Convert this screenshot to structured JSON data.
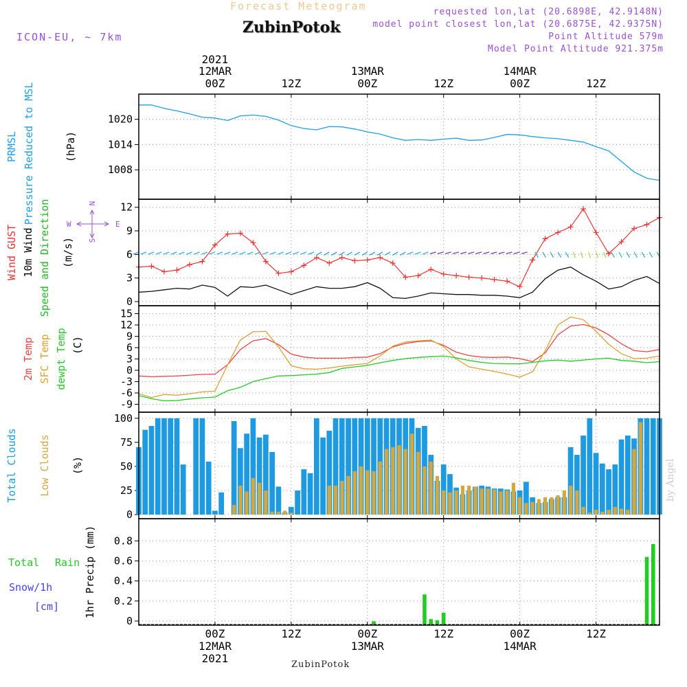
{
  "header": {
    "subtitle": "Forecast Meteogram",
    "title": "ZubinPotok",
    "model": "ICON-EU, ~ 7km",
    "requested": "requested lon,lat (20.6898E, 42.9148N)",
    "closest": "model point closest lon,lat (20.6875E, 42.9375N)",
    "point_altitude": "Point Altitude 579m",
    "model_altitude": "Model Point Altitude 921.375m"
  },
  "footer": {
    "location": "ZubinPotok",
    "watermark": "by Angel"
  },
  "colors": {
    "pressure": "#1ea0e8",
    "gust": "#ee3333",
    "wind": "#111111",
    "wind_label": "#22bb22",
    "temp": "#ee4444",
    "sfc": "#e0a030",
    "dew": "#22cc22",
    "total_clouds": "#1e9be0",
    "low_clouds": "#d4a840",
    "rain": "#22cc22",
    "snow": "#4444ee",
    "compass": "#9b4fd6"
  },
  "chart_data": [
    {
      "type": "line",
      "name": "pressure",
      "ylabel_lines": [
        "PRMSL",
        "Pressure Reduced to MSL"
      ],
      "unit": "(hPa)",
      "yticks": [
        1008,
        1014,
        1020
      ],
      "ylim": [
        1002,
        1025
      ],
      "xlim": [
        -12,
        70
      ],
      "x": [
        -12,
        -10,
        -8,
        -6,
        -4,
        -2,
        0,
        2,
        4,
        6,
        8,
        10,
        12,
        14,
        16,
        18,
        20,
        22,
        24,
        26,
        28,
        30,
        32,
        34,
        36,
        38,
        40,
        42,
        44,
        46,
        48,
        50,
        52,
        54,
        56,
        58,
        60,
        62,
        64,
        66,
        68,
        70
      ],
      "values": [
        1023.4,
        1023.4,
        1022.6,
        1022.0,
        1021.3,
        1020.5,
        1020.3,
        1019.7,
        1020.8,
        1021.0,
        1020.7,
        1019.8,
        1018.5,
        1017.8,
        1017.5,
        1018.3,
        1018.2,
        1017.7,
        1017.0,
        1016.5,
        1015.6,
        1015.0,
        1015.2,
        1015.0,
        1015.3,
        1015.5,
        1015.0,
        1015.1,
        1015.7,
        1016.4,
        1016.3,
        1015.9,
        1015.6,
        1015.4,
        1015.0,
        1014.6,
        1013.5,
        1012.5,
        1010.0,
        1007.5,
        1006.0,
        1005.5
      ]
    },
    {
      "type": "line",
      "name": "wind",
      "ylabel_lines": [
        "Wind GUST",
        "10m Wind",
        "Speed and Direction"
      ],
      "unit": "(m/s)",
      "compass": {
        "n": "N",
        "s": "S",
        "w": "W",
        "e": "E"
      },
      "yticks": [
        0,
        3,
        6,
        9,
        12
      ],
      "ylim": [
        0,
        12.5
      ],
      "xlim": [
        -12,
        70
      ],
      "x": [
        -12,
        -10,
        -8,
        -6,
        -4,
        -2,
        0,
        2,
        4,
        6,
        8,
        10,
        12,
        14,
        16,
        18,
        20,
        22,
        24,
        26,
        28,
        30,
        32,
        34,
        36,
        38,
        40,
        42,
        44,
        46,
        48,
        50,
        52,
        54,
        56,
        58,
        60,
        62,
        64,
        66,
        68,
        70
      ],
      "series": [
        {
          "name": "Wind GUST",
          "values": [
            4.4,
            4.5,
            3.8,
            4.0,
            4.7,
            5.1,
            7.2,
            8.6,
            8.7,
            7.5,
            5.1,
            3.6,
            3.8,
            4.6,
            5.6,
            4.9,
            5.6,
            5.2,
            5.3,
            5.6,
            4.9,
            3.1,
            3.3,
            4.1,
            3.5,
            3.3,
            3.1,
            3.0,
            2.8,
            2.6,
            1.9,
            5.3,
            8.0,
            8.8,
            9.5,
            11.8,
            8.8,
            6.1,
            7.6,
            9.3,
            9.8,
            10.7
          ]
        },
        {
          "name": "10m Wind",
          "values": [
            1.2,
            1.3,
            1.5,
            1.7,
            1.6,
            2.1,
            1.8,
            0.7,
            1.9,
            1.8,
            2.1,
            1.5,
            0.9,
            1.4,
            1.9,
            1.7,
            1.7,
            1.9,
            2.4,
            1.7,
            0.5,
            0.4,
            0.7,
            1.1,
            1.0,
            0.9,
            0.9,
            0.8,
            0.8,
            0.7,
            0.5,
            1.2,
            2.9,
            4.0,
            4.4,
            3.4,
            2.6,
            1.6,
            1.9,
            2.7,
            3.2,
            2.3
          ]
        }
      ]
    },
    {
      "type": "line",
      "name": "temperature",
      "ylabel_lines": [
        "2m Temp",
        "SFC Temp",
        "dewpt Temp"
      ],
      "unit": "(C)",
      "yticks": [
        -9,
        -6,
        -3,
        0,
        3,
        6,
        9,
        12,
        15
      ],
      "ylim": [
        -10,
        16
      ],
      "xlim": [
        -12,
        70
      ],
      "x": [
        -12,
        -10,
        -8,
        -6,
        -4,
        -2,
        0,
        2,
        4,
        6,
        8,
        10,
        12,
        14,
        16,
        18,
        20,
        22,
        24,
        26,
        28,
        30,
        32,
        34,
        36,
        38,
        40,
        42,
        44,
        46,
        48,
        50,
        52,
        54,
        56,
        58,
        60,
        62,
        64,
        66,
        68,
        70
      ],
      "series": [
        {
          "name": "2m Temp",
          "values": [
            -1.5,
            -1.7,
            -1.6,
            -1.5,
            -1.3,
            -1.1,
            -1.0,
            1.5,
            5.5,
            7.8,
            8.4,
            6.8,
            4.3,
            3.5,
            3.2,
            3.2,
            3.2,
            3.4,
            3.5,
            4.4,
            6.2,
            7.1,
            7.6,
            7.8,
            6.6,
            4.8,
            3.9,
            3.5,
            3.4,
            3.5,
            3.1,
            2.3,
            4.6,
            9.4,
            11.7,
            12.1,
            11.2,
            9.4,
            7.0,
            5.2,
            4.9,
            5.5
          ]
        },
        {
          "name": "SFC Temp",
          "values": [
            -6.2,
            -7.2,
            -6.4,
            -6.6,
            -6.2,
            -5.7,
            -5.5,
            1.5,
            8.0,
            10.2,
            10.3,
            6.2,
            1.2,
            0.4,
            0.3,
            0.6,
            1.1,
            1.5,
            1.8,
            3.8,
            6.4,
            7.5,
            7.8,
            8.0,
            6.3,
            3.0,
            0.9,
            0.3,
            -0.3,
            -1.0,
            -1.8,
            -0.4,
            5.2,
            12.0,
            14.1,
            13.4,
            10.3,
            6.9,
            4.4,
            3.1,
            3.2,
            3.8
          ]
        },
        {
          "name": "dewpt Temp",
          "values": [
            -6.7,
            -7.5,
            -8.1,
            -8.0,
            -7.6,
            -7.3,
            -7.1,
            -5.4,
            -4.5,
            -3.0,
            -2.2,
            -1.5,
            -1.4,
            -1.2,
            -1.0,
            -0.6,
            0.5,
            0.9,
            1.3,
            2.0,
            2.6,
            3.1,
            3.4,
            3.6,
            3.8,
            3.3,
            2.6,
            2.1,
            1.8,
            1.7,
            1.7,
            2.1,
            2.5,
            2.7,
            2.4,
            2.7,
            3.0,
            3.2,
            2.6,
            2.4,
            2.0,
            2.3
          ]
        }
      ]
    },
    {
      "type": "bar",
      "name": "clouds",
      "ylabel_lines": [
        "Total Clouds",
        "Low Clouds"
      ],
      "unit": "(%)",
      "yticks": [
        0,
        25,
        50,
        75,
        100
      ],
      "ylim": [
        0,
        102
      ],
      "xlim": [
        -12,
        70
      ],
      "x": [
        -12,
        -11,
        -10,
        -9,
        -8,
        -7,
        -6,
        -5,
        -4,
        -3,
        -2,
        -1,
        0,
        1,
        2,
        3,
        4,
        5,
        6,
        7,
        8,
        9,
        10,
        11,
        12,
        13,
        14,
        15,
        16,
        17,
        18,
        19,
        20,
        21,
        22,
        23,
        24,
        25,
        26,
        27,
        28,
        29,
        30,
        31,
        32,
        33,
        34,
        35,
        36,
        37,
        38,
        39,
        40,
        41,
        42,
        43,
        44,
        45,
        46,
        47,
        48,
        49,
        50,
        51,
        52,
        53,
        54,
        55,
        56,
        57,
        58,
        59,
        60,
        61,
        62,
        63,
        64,
        65,
        66,
        67,
        68,
        69,
        70
      ],
      "series": [
        {
          "name": "Total Clouds",
          "values": [
            70,
            88,
            92,
            100,
            100,
            100,
            100,
            52,
            0,
            100,
            100,
            55,
            4,
            23,
            0,
            97,
            69,
            84,
            100,
            80,
            83,
            65,
            29,
            2,
            8,
            25,
            47,
            43,
            100,
            80,
            87,
            100,
            100,
            100,
            100,
            100,
            100,
            100,
            100,
            100,
            100,
            100,
            100,
            100,
            90,
            92,
            62,
            35,
            52,
            42,
            28,
            21,
            25,
            29,
            30,
            29,
            27,
            27,
            26,
            24,
            25,
            34,
            18,
            12,
            13,
            16,
            18,
            18,
            70,
            62,
            82,
            100,
            64,
            53,
            47,
            52,
            78,
            82,
            79,
            100,
            100,
            100,
            100
          ]
        },
        {
          "name": "Low Clouds",
          "values": [
            0,
            0,
            0,
            0,
            0,
            0,
            0,
            0,
            0,
            0,
            0,
            0,
            0,
            0,
            0,
            10,
            30,
            24,
            38,
            33,
            25,
            3,
            3,
            4,
            2,
            0,
            0,
            0,
            0,
            0,
            30,
            30,
            35,
            40,
            45,
            50,
            46,
            45,
            55,
            68,
            70,
            72,
            68,
            84,
            65,
            50,
            55,
            40,
            25,
            23,
            25,
            30,
            30,
            29,
            27,
            27,
            26,
            24,
            25,
            33,
            18,
            12,
            13,
            16,
            18,
            18,
            20,
            25,
            30,
            25,
            8,
            2,
            5,
            3,
            5,
            8,
            6,
            5,
            68,
            96,
            0,
            0,
            0
          ]
        }
      ]
    },
    {
      "type": "bar",
      "name": "precipitation",
      "ylabel_lines": [
        "Total Rain",
        "Snow/1h",
        "[cm]"
      ],
      "unit": "1hr Precip (mm)",
      "yticks": [
        0,
        0.2,
        0.4,
        0.6,
        0.8
      ],
      "yticklabels": [
        "0",
        "0.2",
        "0.4",
        "0.6",
        "0.8"
      ],
      "ylim": [
        0,
        0.98
      ],
      "xlim": [
        -12,
        70
      ],
      "x": [
        25,
        33,
        34,
        35,
        36,
        37,
        68,
        69
      ],
      "series": [
        {
          "name": "Total Rain",
          "values": [
            0.03,
            0.28,
            0.05,
            0.04,
            0.11,
            0.0,
            0.63,
            0.75
          ]
        },
        {
          "name": "Snow/1h",
          "values": [
            0,
            0,
            0,
            0,
            0,
            0,
            0,
            0
          ]
        }
      ]
    }
  ],
  "x_axis": {
    "ticks": [
      0,
      12,
      24,
      36,
      48,
      60
    ],
    "top_labels": [
      {
        "year": "2021",
        "date": "12MAR",
        "time": "00Z"
      },
      {
        "time": "12Z"
      },
      {
        "date": "13MAR",
        "time": "00Z"
      },
      {
        "time": "12Z"
      },
      {
        "date": "14MAR",
        "time": "00Z"
      },
      {
        "time": "12Z"
      }
    ],
    "bottom_labels": [
      {
        "time": "00Z",
        "date": "12MAR",
        "year": "2021"
      },
      {
        "time": "12Z"
      },
      {
        "time": "00Z",
        "date": "13MAR"
      },
      {
        "time": "12Z"
      },
      {
        "time": "00Z",
        "date": "14MAR"
      },
      {
        "time": "12Z"
      }
    ]
  }
}
